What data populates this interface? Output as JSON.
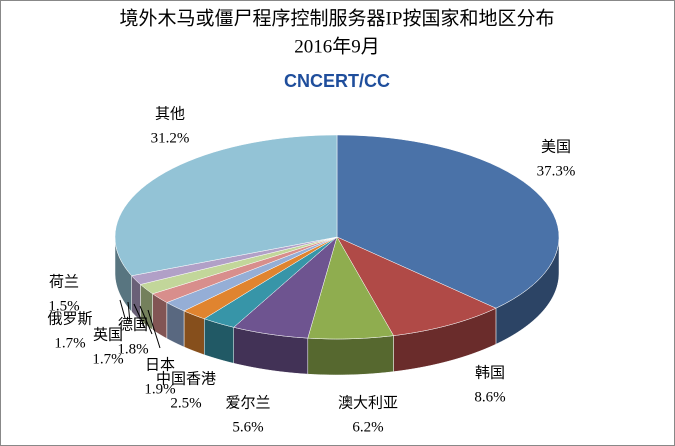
{
  "chart_data": {
    "type": "pie",
    "title": "境外木马或僵尸程序控制服务器IP按国家和地区分布",
    "subtitle": "2016年9月",
    "logo": "CNCERT/CC",
    "categories": [
      "美国",
      "韩国",
      "澳大利亚",
      "爱尔兰",
      "中国香港",
      "日本",
      "德国",
      "英国",
      "俄罗斯",
      "荷兰",
      "其他"
    ],
    "values": [
      37.3,
      8.6,
      6.2,
      5.6,
      2.5,
      1.9,
      1.8,
      1.7,
      1.7,
      1.5,
      31.2
    ],
    "value_labels": [
      "37.3%",
      "8.6%",
      "6.2%",
      "5.6%",
      "2.5%",
      "1.9%",
      "1.8%",
      "1.7%",
      "1.7%",
      "1.5%",
      "31.2%"
    ],
    "colors": [
      "#4a72a8",
      "#b04a47",
      "#8fad4f",
      "#6e5490",
      "#3795a8",
      "#e0842f",
      "#95aed6",
      "#d88e8c",
      "#c2d69a",
      "#b1a0c7",
      "#93c3d6"
    ]
  }
}
